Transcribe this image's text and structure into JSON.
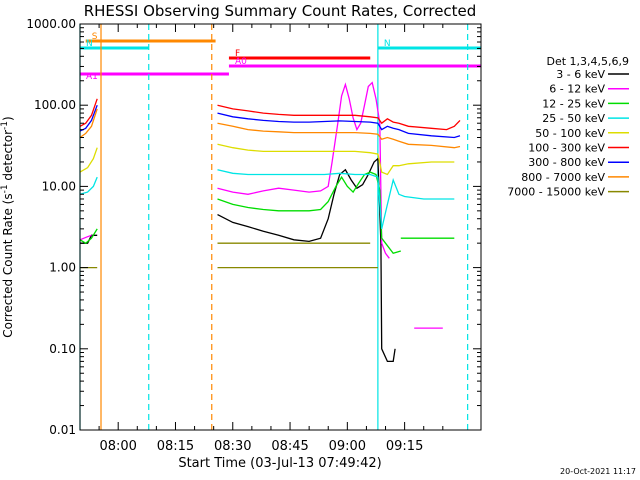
{
  "chart_data": {
    "type": "line",
    "title": "RHESSI Observing Summary Count Rates, Corrected",
    "xlabel": "Start Time (03-Jul-13 07:49:42)",
    "ylabel_main": "Corrected Count Rate (s",
    "ylabel_sup": "-1",
    "ylabel_tail": " detector",
    "ylabel_sup2": "-1",
    "ylabel_close": ")",
    "yscale": "log",
    "ylim": [
      0.01,
      1000
    ],
    "xlim_min": [
      -10,
      95
    ],
    "yticks": [
      {
        "v": 1000,
        "label": "1000.00"
      },
      {
        "v": 100,
        "label": "100.00"
      },
      {
        "v": 10,
        "label": "10.00"
      },
      {
        "v": 1,
        "label": "1.00"
      },
      {
        "v": 0.1,
        "label": "0.10"
      },
      {
        "v": 0.01,
        "label": "0.01"
      }
    ],
    "xticks": [
      {
        "t": 0,
        "label": "08:00"
      },
      {
        "t": 15,
        "label": "08:15"
      },
      {
        "t": 30,
        "label": "08:30"
      },
      {
        "t": 45,
        "label": "08:45"
      },
      {
        "t": 60,
        "label": "09:00"
      },
      {
        "t": 75,
        "label": "09:15"
      }
    ],
    "legend_title": "Det 1,3,4,5,6,9",
    "legend": [
      {
        "label": "3 - 6 keV",
        "color": "#000000"
      },
      {
        "label": "6 - 12 keV",
        "color": "#ff00ff"
      },
      {
        "label": "12 - 25 keV",
        "color": "#00dd00"
      },
      {
        "label": "25 - 50 keV",
        "color": "#00e5e5"
      },
      {
        "label": "50 - 100 keV",
        "color": "#dddd00"
      },
      {
        "label": "100 - 300 keV",
        "color": "#ff0000"
      },
      {
        "label": "300 - 800 keV",
        "color": "#0000ff"
      },
      {
        "label": "800 - 7000 keV",
        "color": "#ff8800"
      },
      {
        "label": "7000 - 15000 keV",
        "color": "#888800"
      }
    ],
    "flags": [
      {
        "label": "S",
        "color": "#ff8800",
        "t0": -8.5,
        "t1": 25.5,
        "y": 0
      },
      {
        "label": "N",
        "color": "#00e5e5",
        "t0": -10,
        "t1": 8,
        "y": 1
      },
      {
        "label": "N",
        "color": "#00e5e5",
        "t0": 68,
        "t1": 95,
        "y": 1
      },
      {
        "label": "F",
        "color": "#ff0000",
        "t0": 29,
        "t1": 66,
        "y": 2
      },
      {
        "label": "A0",
        "color": "#ff00ff",
        "t0": 29,
        "t1": 95,
        "y": 3
      },
      {
        "label": "A1",
        "color": "#ff00ff",
        "t0": -10,
        "t1": 29,
        "y": 4
      }
    ],
    "vlines": [
      {
        "t": -10,
        "color": "#00e5e5",
        "dash": false
      },
      {
        "t": -4.5,
        "color": "#ff8800",
        "dash": false
      },
      {
        "t": 8,
        "color": "#00e5e5",
        "dash": true
      },
      {
        "t": 24.5,
        "color": "#ff8800",
        "dash": true
      },
      {
        "t": 68,
        "color": "#00e5e5",
        "dash": false
      },
      {
        "t": 91.5,
        "color": "#00e5e5",
        "dash": true
      }
    ],
    "series": [
      {
        "name": "3 - 6 keV",
        "color": "#000000",
        "segments": [
          [
            [
              -10,
              2
            ],
            [
              -8,
              2
            ],
            [
              -7,
              2.5
            ],
            [
              -5.5,
              2.5
            ]
          ],
          [
            [
              26,
              4.5
            ],
            [
              30,
              3.6
            ],
            [
              34,
              3.2
            ],
            [
              38,
              2.8
            ],
            [
              42,
              2.5
            ],
            [
              46,
              2.2
            ],
            [
              50,
              2.1
            ],
            [
              53,
              2.3
            ],
            [
              55,
              4
            ],
            [
              56.5,
              8
            ],
            [
              58,
              14
            ],
            [
              59.5,
              16
            ],
            [
              61,
              12
            ],
            [
              62.5,
              9.5
            ],
            [
              64,
              10.5
            ],
            [
              65.5,
              14
            ],
            [
              67,
              20
            ],
            [
              68,
              22
            ],
            [
              68.8,
              2
            ],
            [
              69,
              0.1
            ],
            [
              70.5,
              0.07
            ],
            [
              72,
              0.07
            ],
            [
              72.5,
              0.1
            ]
          ]
        ]
      },
      {
        "name": "6 - 12 keV",
        "color": "#ff00ff",
        "segments": [
          [
            [
              -10,
              2.2
            ],
            [
              -8,
              2.4
            ],
            [
              -7,
              2.5
            ]
          ],
          [
            [
              26,
              9.5
            ],
            [
              30,
              8.5
            ],
            [
              34,
              8
            ],
            [
              38,
              8.8
            ],
            [
              42,
              9.5
            ],
            [
              46,
              9
            ],
            [
              50,
              8.5
            ],
            [
              53,
              8.8
            ],
            [
              55,
              10
            ],
            [
              56,
              20
            ],
            [
              57.5,
              60
            ],
            [
              58.5,
              130
            ],
            [
              59.5,
              180
            ],
            [
              60.5,
              120
            ],
            [
              61.5,
              70
            ],
            [
              62.5,
              50
            ],
            [
              63.5,
              60
            ],
            [
              64.5,
              100
            ],
            [
              65.5,
              170
            ],
            [
              66.5,
              190
            ],
            [
              67.5,
              120
            ],
            [
              68.5,
              60
            ],
            [
              69,
              2
            ],
            [
              70,
              1.5
            ],
            [
              71,
              1.3
            ]
          ],
          [
            [
              77.5,
              0.18
            ],
            [
              85,
              0.18
            ]
          ]
        ]
      },
      {
        "name": "12 - 25 keV",
        "color": "#00dd00",
        "segments": [
          [
            [
              -10,
              2.2
            ],
            [
              -8.5,
              2
            ],
            [
              -7,
              2.3
            ],
            [
              -5.5,
              3
            ]
          ],
          [
            [
              26,
              7
            ],
            [
              30,
              6
            ],
            [
              34,
              5.5
            ],
            [
              38,
              5.2
            ],
            [
              42,
              5
            ],
            [
              46,
              5
            ],
            [
              50,
              5
            ],
            [
              53,
              5.2
            ],
            [
              55,
              6.5
            ],
            [
              57,
              10
            ],
            [
              58.5,
              13
            ],
            [
              60,
              10
            ],
            [
              61.5,
              8.5
            ],
            [
              63,
              11
            ],
            [
              64.5,
              14
            ],
            [
              66,
              15
            ],
            [
              67.5,
              14
            ],
            [
              68.5,
              9
            ],
            [
              69,
              2.3
            ],
            [
              70,
              2
            ],
            [
              72,
              1.5
            ],
            [
              74,
              1.6
            ]
          ],
          [
            [
              74,
              2.3
            ],
            [
              88,
              2.3
            ]
          ]
        ]
      },
      {
        "name": "25 - 50 keV",
        "color": "#00e5e5",
        "segments": [
          [
            [
              -10,
              8
            ],
            [
              -8,
              8.5
            ],
            [
              -6.5,
              10
            ],
            [
              -5.5,
              13
            ]
          ],
          [
            [
              26,
              16
            ],
            [
              30,
              14.5
            ],
            [
              34,
              14
            ],
            [
              38,
              14
            ],
            [
              42,
              14
            ],
            [
              46,
              14
            ],
            [
              50,
              14
            ],
            [
              54,
              14
            ],
            [
              58,
              14.5
            ],
            [
              62,
              14
            ],
            [
              66,
              14
            ],
            [
              68,
              13
            ],
            [
              69,
              3
            ],
            [
              70.5,
              6
            ],
            [
              72,
              12
            ],
            [
              73.5,
              8
            ],
            [
              75,
              7.5
            ],
            [
              80,
              7
            ],
            [
              88,
              7
            ]
          ]
        ]
      },
      {
        "name": "50 - 100 keV",
        "color": "#dddd00",
        "segments": [
          [
            [
              -10,
              15
            ],
            [
              -8,
              17
            ],
            [
              -6.5,
              22
            ],
            [
              -5.5,
              30
            ]
          ],
          [
            [
              26,
              33
            ],
            [
              30,
              30
            ],
            [
              34,
              28
            ],
            [
              38,
              27
            ],
            [
              42,
              27
            ],
            [
              46,
              27
            ],
            [
              50,
              27
            ],
            [
              54,
              27
            ],
            [
              58,
              27
            ],
            [
              62,
              27
            ],
            [
              66,
              26
            ],
            [
              68,
              25
            ],
            [
              69,
              15
            ],
            [
              70.5,
              14
            ],
            [
              72,
              18
            ],
            [
              73.5,
              18
            ],
            [
              76,
              19
            ],
            [
              82,
              20
            ],
            [
              88,
              20
            ]
          ]
        ]
      },
      {
        "name": "100 - 300 keV",
        "color": "#ff0000",
        "segments": [
          [
            [
              -10,
              55
            ],
            [
              -8.5,
              60
            ],
            [
              -7,
              75
            ],
            [
              -5.5,
              120
            ]
          ],
          [
            [
              26,
              100
            ],
            [
              30,
              90
            ],
            [
              34,
              85
            ],
            [
              38,
              80
            ],
            [
              42,
              77
            ],
            [
              46,
              75
            ],
            [
              50,
              75
            ],
            [
              54,
              75
            ],
            [
              58,
              75
            ],
            [
              62,
              75
            ],
            [
              66,
              72
            ],
            [
              68,
              70
            ],
            [
              69,
              60
            ],
            [
              70.5,
              68
            ],
            [
              72,
              62
            ],
            [
              73.5,
              60
            ],
            [
              76,
              55
            ],
            [
              82,
              52
            ],
            [
              86,
              50
            ],
            [
              88,
              55
            ],
            [
              89.5,
              65
            ]
          ]
        ]
      },
      {
        "name": "300 - 800 keV",
        "color": "#0000ff",
        "segments": [
          [
            [
              -10,
              48
            ],
            [
              -8.5,
              52
            ],
            [
              -7,
              65
            ],
            [
              -5.5,
              100
            ]
          ],
          [
            [
              26,
              80
            ],
            [
              30,
              72
            ],
            [
              34,
              68
            ],
            [
              38,
              65
            ],
            [
              42,
              63
            ],
            [
              46,
              62
            ],
            [
              50,
              62
            ],
            [
              54,
              63
            ],
            [
              58,
              64
            ],
            [
              62,
              63
            ],
            [
              66,
              62
            ],
            [
              68,
              60
            ],
            [
              69,
              50
            ],
            [
              70.5,
              55
            ],
            [
              72,
              52
            ],
            [
              73.5,
              50
            ],
            [
              76,
              45
            ],
            [
              82,
              42
            ],
            [
              88,
              40
            ],
            [
              89.5,
              42
            ]
          ]
        ]
      },
      {
        "name": "800 - 7000 keV",
        "color": "#ff8800",
        "segments": [
          [
            [
              -10,
              40
            ],
            [
              -8.5,
              45
            ],
            [
              -7,
              55
            ],
            [
              -5.5,
              90
            ]
          ],
          [
            [
              26,
              60
            ],
            [
              30,
              55
            ],
            [
              34,
              50
            ],
            [
              38,
              48
            ],
            [
              42,
              47
            ],
            [
              46,
              46
            ],
            [
              50,
              46
            ],
            [
              54,
              46
            ],
            [
              58,
              46
            ],
            [
              62,
              46
            ],
            [
              66,
              45
            ],
            [
              68,
              44
            ],
            [
              69,
              38
            ],
            [
              70.5,
              40
            ],
            [
              72,
              38
            ],
            [
              73.5,
              36
            ],
            [
              76,
              33
            ],
            [
              82,
              32
            ],
            [
              88,
              30
            ],
            [
              89.5,
              31
            ]
          ]
        ]
      },
      {
        "name": "7000 - 15000 keV",
        "color": "#888800",
        "segments": [
          [
            [
              -10,
              1
            ],
            [
              -8,
              1
            ],
            [
              -6,
              1
            ],
            [
              -5.5,
              1
            ]
          ],
          [
            [
              26,
              1
            ],
            [
              40,
              1
            ],
            [
              55,
              1
            ],
            [
              68,
              1
            ]
          ],
          [
            [
              26,
              2
            ],
            [
              40,
              2
            ],
            [
              55,
              2
            ],
            [
              66,
              2
            ]
          ]
        ]
      }
    ]
  },
  "footer_date": "20-Oct-2021 11:17"
}
